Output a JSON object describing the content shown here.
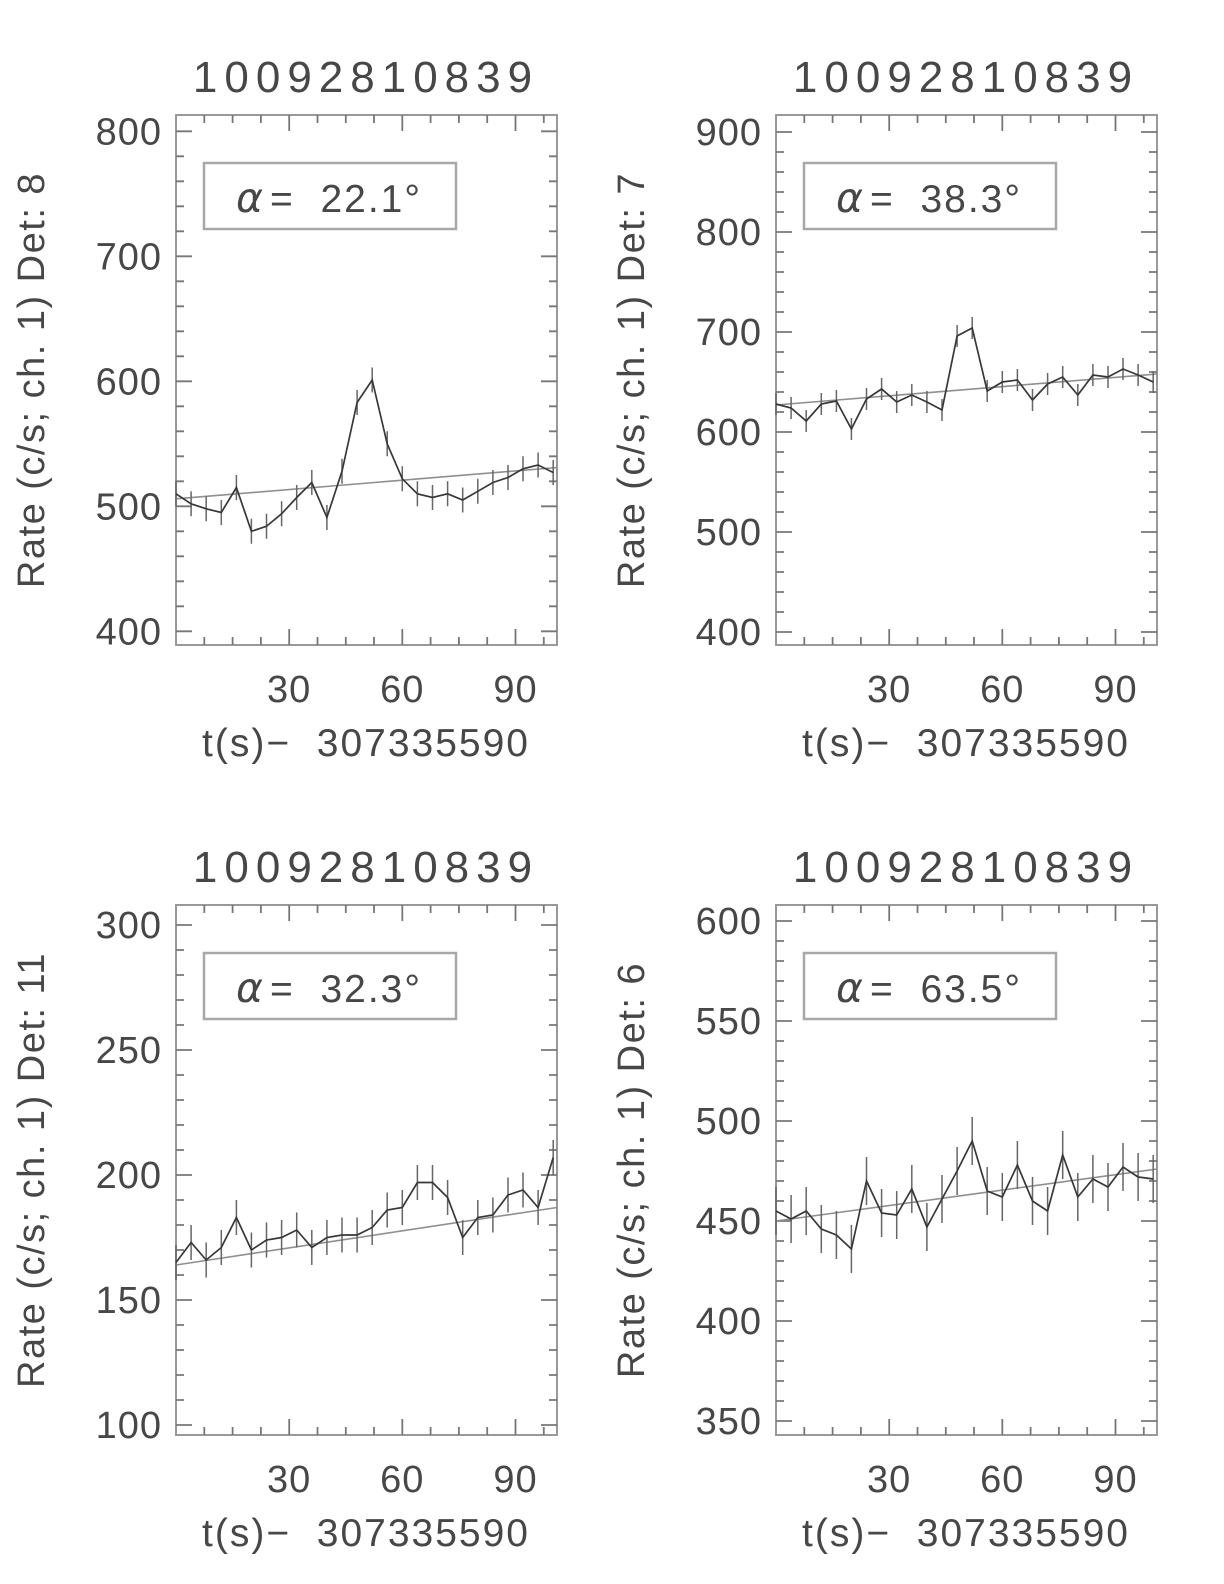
{
  "figure": {
    "background": "#ffffff",
    "text_color": "#474747",
    "frame_color": "#999999",
    "tick_color": "#777777",
    "data_color": "#383838",
    "trend_color": "#8f8f8f",
    "error_color": "#666666",
    "annotation_border": "#a8a8a8"
  },
  "chart_data": {
    "type": "line",
    "layout": "2x2 grid of light curves, error bars, linear trend overlay",
    "panels": [
      {
        "title": "10092810839",
        "ylabel": "Rate (c/s; ch. 1) Det: 8",
        "xlabel": "t(s)−  307335590",
        "alpha_symbol": "α",
        "alpha_value": "=  22.1°",
        "x_ticks": [
          30,
          60,
          90
        ],
        "y_ticks": [
          400,
          500,
          600,
          700,
          800
        ],
        "xlim": [
          0,
          101
        ],
        "ylim": [
          389,
          813
        ],
        "x_minor_step": 7.5,
        "y_minor_step": 20,
        "t": [
          0,
          4,
          8,
          12,
          16,
          20,
          24,
          28,
          32,
          36,
          40,
          44,
          48,
          52,
          56,
          60,
          64,
          68,
          72,
          76,
          80,
          84,
          88,
          92,
          96,
          100
        ],
        "rate": [
          510,
          502,
          498,
          495,
          515,
          480,
          484,
          494,
          507,
          519,
          491,
          528,
          583,
          601,
          550,
          522,
          510,
          507,
          510,
          505,
          512,
          519,
          523,
          530,
          533,
          527
        ],
        "error": 10,
        "trend_endpoints": [
          506,
          531
        ]
      },
      {
        "title": "10092810839",
        "ylabel": "Rate (c/s; ch. 1) Det: 7",
        "xlabel": "t(s)−  307335590",
        "alpha_symbol": "α",
        "alpha_value": "=  38.3°",
        "x_ticks": [
          30,
          60,
          90
        ],
        "y_ticks": [
          400,
          500,
          600,
          700,
          800,
          900
        ],
        "xlim": [
          0,
          101
        ],
        "ylim": [
          387,
          917
        ],
        "x_minor_step": 7.5,
        "y_minor_step": 20,
        "t": [
          0,
          4,
          8,
          12,
          16,
          20,
          24,
          28,
          32,
          36,
          40,
          44,
          48,
          52,
          56,
          60,
          64,
          68,
          72,
          76,
          80,
          84,
          88,
          92,
          96,
          100
        ],
        "rate": [
          628,
          624,
          611,
          628,
          631,
          603,
          633,
          643,
          630,
          637,
          630,
          622,
          696,
          704,
          641,
          650,
          652,
          632,
          648,
          655,
          637,
          657,
          655,
          663,
          657,
          650
        ],
        "error": 11,
        "trend_endpoints": [
          627,
          658
        ]
      },
      {
        "title": "10092810839",
        "ylabel": "Rate (c/s; ch. 1) Det: 11",
        "xlabel": "t(s)−  307335590",
        "alpha_symbol": "α",
        "alpha_value": "=  32.3°",
        "x_ticks": [
          30,
          60,
          90
        ],
        "y_ticks": [
          100,
          150,
          200,
          250,
          300
        ],
        "xlim": [
          0,
          101
        ],
        "ylim": [
          96,
          308
        ],
        "x_minor_step": 7.5,
        "y_minor_step": 10,
        "t": [
          0,
          4,
          8,
          12,
          16,
          20,
          24,
          28,
          32,
          36,
          40,
          44,
          48,
          52,
          56,
          60,
          64,
          68,
          72,
          76,
          80,
          84,
          88,
          92,
          96,
          100
        ],
        "rate": [
          165,
          173,
          166,
          171,
          183,
          170,
          174,
          175,
          178,
          171,
          175,
          176,
          176,
          179,
          186,
          187,
          197,
          197,
          191,
          175,
          183,
          184,
          192,
          194,
          187,
          207
        ],
        "error": 7,
        "trend_endpoints": [
          164,
          187
        ]
      },
      {
        "title": "10092810839",
        "ylabel": "Rate (c/s; ch. 1) Det: 6",
        "xlabel": "t(s)−  307335590",
        "alpha_symbol": "α",
        "alpha_value": "=  63.5°",
        "x_ticks": [
          30,
          60,
          90
        ],
        "y_ticks": [
          350,
          400,
          450,
          500,
          550,
          600
        ],
        "xlim": [
          0,
          101
        ],
        "ylim": [
          343,
          608
        ],
        "x_minor_step": 7.5,
        "y_minor_step": 10,
        "t": [
          0,
          4,
          8,
          12,
          16,
          20,
          24,
          28,
          32,
          36,
          40,
          44,
          48,
          52,
          56,
          60,
          64,
          68,
          72,
          76,
          80,
          84,
          88,
          92,
          96,
          100
        ],
        "rate": [
          455,
          451,
          455,
          446,
          443,
          436,
          470,
          454,
          453,
          466,
          447,
          461,
          475,
          490,
          465,
          462,
          478,
          460,
          455,
          483,
          462,
          471,
          467,
          477,
          472,
          471
        ],
        "error": 12,
        "trend_endpoints": [
          450,
          476
        ]
      }
    ]
  }
}
